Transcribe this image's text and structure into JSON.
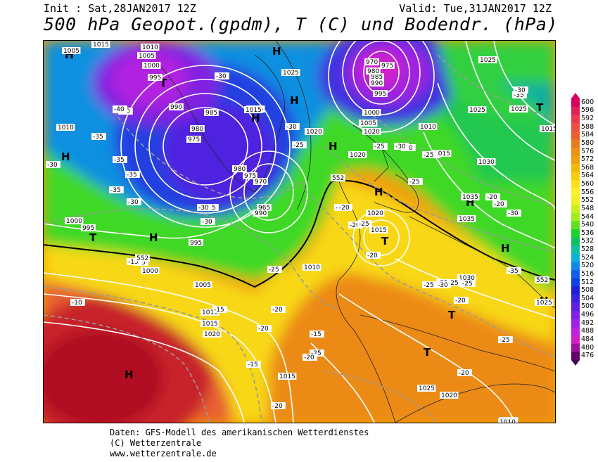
{
  "header": {
    "init": "Init : Sat,28JAN2017 12Z",
    "valid": "Valid: Tue,31JAN2017 12Z",
    "title": "500 hPa Geopot.(gpdm), T (C) und Bodendr. (hPa)"
  },
  "footer": {
    "line1": "Daten: GFS-Modell des amerikanischen Wetterdienstes",
    "line2": "(C) Wetterzentrale",
    "line3": "www.wetterzentrale.de"
  },
  "legend": {
    "labels": [
      "600",
      "596",
      "592",
      "588",
      "584",
      "580",
      "576",
      "572",
      "568",
      "564",
      "560",
      "556",
      "552",
      "548",
      "544",
      "540",
      "536",
      "532",
      "528",
      "524",
      "520",
      "516",
      "512",
      "508",
      "504",
      "500",
      "496",
      "492",
      "488",
      "484",
      "480",
      "476"
    ],
    "colors": [
      "#d8005c",
      "#e0205c",
      "#e83a50",
      "#ec5040",
      "#e86030",
      "#e87a20",
      "#ec9018",
      "#f0a010",
      "#f4b810",
      "#f8cc10",
      "#fce018",
      "#fcf030",
      "#f0f020",
      "#c8f020",
      "#a0ec20",
      "#60e020",
      "#20d030",
      "#10c060",
      "#10c0a0",
      "#10b0d8",
      "#1088e8",
      "#1060e8",
      "#1040e0",
      "#2020d8",
      "#4020e0",
      "#6020e0",
      "#8020e0",
      "#a020e8",
      "#c020e0",
      "#d020c8",
      "#a0109a",
      "#60006a"
    ]
  },
  "map": {
    "pressure_centers": [
      {
        "kind": "H",
        "label": "H"
      },
      {
        "kind": "H",
        "label": "H"
      },
      {
        "kind": "H",
        "label": "H"
      },
      {
        "kind": "H",
        "label": "H"
      },
      {
        "kind": "H",
        "label": "H"
      },
      {
        "kind": "H",
        "label": "H"
      },
      {
        "kind": "H",
        "label": "H"
      },
      {
        "kind": "H",
        "label": "H"
      },
      {
        "kind": "H",
        "label": "H"
      },
      {
        "kind": "H",
        "label": "H"
      },
      {
        "kind": "H",
        "label": "H"
      },
      {
        "kind": "H",
        "label": "H"
      },
      {
        "kind": "T",
        "label": "T"
      },
      {
        "kind": "T",
        "label": "T"
      },
      {
        "kind": "T",
        "label": "T"
      },
      {
        "kind": "T",
        "label": "T"
      },
      {
        "kind": "T",
        "label": "T"
      },
      {
        "kind": "T",
        "label": "T"
      },
      {
        "kind": "T",
        "label": "T"
      }
    ],
    "pressure_labels": [
      "1005",
      "1015",
      "1010",
      "1005",
      "1000",
      "995",
      "990",
      "985",
      "980",
      "975",
      "1010",
      "1000",
      "995",
      "995",
      "1000",
      "1005",
      "1010",
      "1015",
      "1020",
      "980",
      "975",
      "970",
      "965",
      "990",
      "1015",
      "1025",
      "1020",
      "1010",
      "1020",
      "1015",
      "1000",
      "1005",
      "1010",
      "1015",
      "1020",
      "1025",
      "1030",
      "1035",
      "1035",
      "1020",
      "1015",
      "1030",
      "1025",
      "1025",
      "1020",
      "1020",
      "1010",
      "1015",
      "1025",
      "1025",
      "1015",
      "985",
      "990",
      "995",
      "980",
      "970",
      "975",
      "1015"
    ],
    "temp_labels": [
      "-40",
      "-35",
      "-30",
      "-35",
      "-35",
      "-30",
      "-30",
      "-35",
      "-30",
      "-25",
      "-25",
      "-30",
      "-25",
      "-20",
      "-20",
      "-25",
      "-20",
      "-15",
      "-25",
      "-20",
      "-20",
      "-15",
      "-15",
      "-20",
      "-25",
      "-20",
      "-35",
      "-40",
      "-30",
      "-30",
      "-25",
      "-25",
      "-20",
      "-20",
      "-25",
      "-25",
      "-20",
      "-15",
      "-10",
      "-15",
      "-25",
      "-20",
      "-25",
      "-30",
      "-35",
      "-30",
      "-25",
      "-40",
      "-35",
      "-30",
      "-30"
    ],
    "height_labels": [
      "552",
      "552",
      "552"
    ]
  }
}
